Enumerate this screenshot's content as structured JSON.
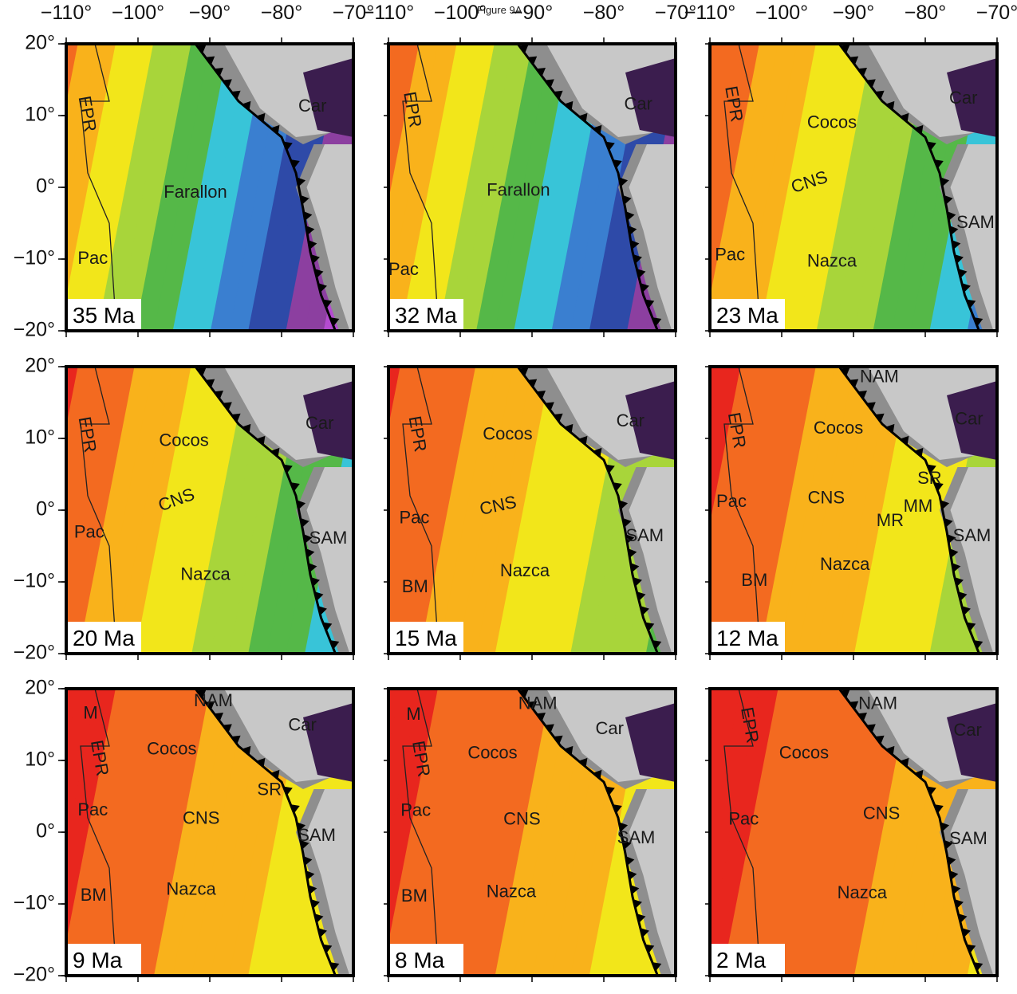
{
  "figure": {
    "title": "Figure 9A"
  },
  "axes": {
    "x_ticks": [
      "−110°",
      "−100°",
      "−90°",
      "−80°",
      "−70°"
    ],
    "y_ticks": [
      "20°",
      "10°",
      "0°",
      "−10°",
      "−20°"
    ],
    "lon_range": [
      -110,
      -70
    ],
    "lat_range": [
      -20,
      20
    ]
  },
  "colors": {
    "ocean_age_ramp": [
      "#e8261e",
      "#f36a20",
      "#f9b21b",
      "#f2e61a",
      "#a8d53a",
      "#55b848",
      "#38c4d8",
      "#3a7fd0",
      "#2e4aa8",
      "#8c3fa0",
      "#b44bd0"
    ],
    "land": "#c8c8c8",
    "land_shelf": "#8e8e8e",
    "caribbean": "#3b1d4e",
    "trench": "#000000"
  },
  "panels": [
    {
      "age": "35 Ma",
      "labels": [
        {
          "text": "EPR",
          "lon": -107.2,
          "lat": 10.2,
          "rot": 80
        },
        {
          "text": "Farallon",
          "lon": -92,
          "lat": -0.8,
          "rot": 0
        },
        {
          "text": "Pac",
          "lon": -106.3,
          "lat": -10,
          "rot": 0
        },
        {
          "text": "Car",
          "lon": -75.7,
          "lat": 11.2,
          "rot": 0
        }
      ]
    },
    {
      "age": "32 Ma",
      "labels": [
        {
          "text": "EPR",
          "lon": -106.8,
          "lat": 10.8,
          "rot": 80
        },
        {
          "text": "Farallon",
          "lon": -91.9,
          "lat": -0.5,
          "rot": 0
        },
        {
          "text": "Pac",
          "lon": -107.9,
          "lat": -11.6,
          "rot": 0
        },
        {
          "text": "Car",
          "lon": -75.2,
          "lat": 11.5,
          "rot": 0
        }
      ]
    },
    {
      "age": "23 Ma",
      "labels": [
        {
          "text": "EPR",
          "lon": -106.8,
          "lat": 11.6,
          "rot": 80
        },
        {
          "text": "Cocos",
          "lon": -93,
          "lat": 8.9,
          "rot": 0
        },
        {
          "text": "CNS",
          "lon": -96.1,
          "lat": 0.6,
          "rot": -18
        },
        {
          "text": "SAM",
          "lon": -73,
          "lat": -5,
          "rot": 0
        },
        {
          "text": "Pac",
          "lon": -107.2,
          "lat": -9.5,
          "rot": 0
        },
        {
          "text": "Nazca",
          "lon": -93,
          "lat": -10.4,
          "rot": 0
        },
        {
          "text": "Car",
          "lon": -74.7,
          "lat": 12.3,
          "rot": 0
        }
      ]
    },
    {
      "age": "20 Ma",
      "labels": [
        {
          "text": "EPR",
          "lon": -107.2,
          "lat": 10.5,
          "rot": 80
        },
        {
          "text": "Cocos",
          "lon": -93.6,
          "lat": 9.6,
          "rot": 0
        },
        {
          "text": "CNS",
          "lon": -94.6,
          "lat": 1.3,
          "rot": -20
        },
        {
          "text": "Pac",
          "lon": -106.8,
          "lat": -3.2,
          "rot": 0
        },
        {
          "text": "SAM",
          "lon": -73.5,
          "lat": -4,
          "rot": 0
        },
        {
          "text": "Nazca",
          "lon": -90.6,
          "lat": -9.1,
          "rot": 0
        },
        {
          "text": "Car",
          "lon": -74.7,
          "lat": 12,
          "rot": 0
        }
      ]
    },
    {
      "age": "15 Ma",
      "labels": [
        {
          "text": "EPR",
          "lon": -106.1,
          "lat": 10.6,
          "rot": 80
        },
        {
          "text": "Cocos",
          "lon": -93.4,
          "lat": 10.5,
          "rot": 0
        },
        {
          "text": "CNS",
          "lon": -94.7,
          "lat": 0.5,
          "rot": -12
        },
        {
          "text": "Pac",
          "lon": -106.4,
          "lat": -1.2,
          "rot": 0
        },
        {
          "text": "SAM",
          "lon": -74.3,
          "lat": -3.7,
          "rot": 0
        },
        {
          "text": "Nazca",
          "lon": -91,
          "lat": -8.6,
          "rot": 0
        },
        {
          "text": "BM",
          "lon": -106.3,
          "lat": -10.8,
          "rot": 0
        },
        {
          "text": "Car",
          "lon": -76.3,
          "lat": 12.3,
          "rot": 0
        }
      ]
    },
    {
      "age": "12 Ma",
      "labels": [
        {
          "text": "EPR",
          "lon": -106.4,
          "lat": 11.1,
          "rot": 80
        },
        {
          "text": "Cocos",
          "lon": -92.1,
          "lat": 11.3,
          "rot": 0
        },
        {
          "text": "SR",
          "lon": -79.4,
          "lat": 4.3,
          "rot": 0
        },
        {
          "text": "Pac",
          "lon": -107,
          "lat": 1.1,
          "rot": 0
        },
        {
          "text": "CNS",
          "lon": -93.8,
          "lat": 1.6,
          "rot": 0
        },
        {
          "text": "MM",
          "lon": -81,
          "lat": 0.4,
          "rot": 0
        },
        {
          "text": "MR",
          "lon": -84.9,
          "lat": -1.6,
          "rot": 0
        },
        {
          "text": "SAM",
          "lon": -73.5,
          "lat": -3.7,
          "rot": 0
        },
        {
          "text": "Nazca",
          "lon": -91.2,
          "lat": -7.7,
          "rot": 0
        },
        {
          "text": "BM",
          "lon": -103.8,
          "lat": -9.9,
          "rot": 0
        },
        {
          "text": "NAM",
          "lon": -86.4,
          "lat": 18.5,
          "rot": 0
        },
        {
          "text": "Car",
          "lon": -73.9,
          "lat": 12.6,
          "rot": 0
        }
      ]
    },
    {
      "age": "9 Ma",
      "labels": [
        {
          "text": "M",
          "lon": -106.6,
          "lat": 16.5,
          "rot": 0
        },
        {
          "text": "EPR",
          "lon": -105.5,
          "lat": 10.3,
          "rot": 80
        },
        {
          "text": "Cocos",
          "lon": -95.3,
          "lat": 11.5,
          "rot": 0
        },
        {
          "text": "SR",
          "lon": -81.7,
          "lat": 5.8,
          "rot": 0
        },
        {
          "text": "Pac",
          "lon": -106.3,
          "lat": 3,
          "rot": 0
        },
        {
          "text": "CNS",
          "lon": -91.2,
          "lat": 1.8,
          "rot": 0
        },
        {
          "text": "SAM",
          "lon": -75.1,
          "lat": -0.6,
          "rot": 0
        },
        {
          "text": "Nazca",
          "lon": -92.6,
          "lat": -8.1,
          "rot": 0
        },
        {
          "text": "BM",
          "lon": -106.2,
          "lat": -8.9,
          "rot": 0
        },
        {
          "text": "NAM",
          "lon": -89.5,
          "lat": 18.2,
          "rot": 0
        },
        {
          "text": "Car",
          "lon": -77.1,
          "lat": 14.8,
          "rot": 0
        }
      ]
    },
    {
      "age": "8 Ma",
      "labels": [
        {
          "text": "M",
          "lon": -106.5,
          "lat": 16.3,
          "rot": 0
        },
        {
          "text": "EPR",
          "lon": -105.6,
          "lat": 10.2,
          "rot": 80
        },
        {
          "text": "Cocos",
          "lon": -95.5,
          "lat": 10.9,
          "rot": 0
        },
        {
          "text": "Pac",
          "lon": -106.2,
          "lat": 2.9,
          "rot": 0
        },
        {
          "text": "CNS",
          "lon": -91.4,
          "lat": 1.7,
          "rot": 0
        },
        {
          "text": "SAM",
          "lon": -75.5,
          "lat": -0.9,
          "rot": 0
        },
        {
          "text": "Nazca",
          "lon": -92.9,
          "lat": -8.4,
          "rot": 0
        },
        {
          "text": "BM",
          "lon": -106.4,
          "lat": -9,
          "rot": 0
        },
        {
          "text": "NAM",
          "lon": -89.2,
          "lat": 17.8,
          "rot": 0
        },
        {
          "text": "Car",
          "lon": -79.2,
          "lat": 14.3,
          "rot": 0
        }
      ]
    },
    {
      "age": "2 Ma",
      "labels": [
        {
          "text": "EPR",
          "lon": -104.6,
          "lat": 14.9,
          "rot": 80
        },
        {
          "text": "Cocos",
          "lon": -96.9,
          "lat": 10.9,
          "rot": 0
        },
        {
          "text": "CNS",
          "lon": -86.1,
          "lat": 2.5,
          "rot": 0
        },
        {
          "text": "Pac",
          "lon": -105.3,
          "lat": 1.7,
          "rot": 0
        },
        {
          "text": "SAM",
          "lon": -74,
          "lat": -1,
          "rot": 0
        },
        {
          "text": "Nazca",
          "lon": -88.8,
          "lat": -8.6,
          "rot": 0
        },
        {
          "text": "NAM",
          "lon": -86.6,
          "lat": 17.8,
          "rot": 0
        },
        {
          "text": "Car",
          "lon": -74.1,
          "lat": 14.1,
          "rot": 0
        }
      ]
    }
  ]
}
